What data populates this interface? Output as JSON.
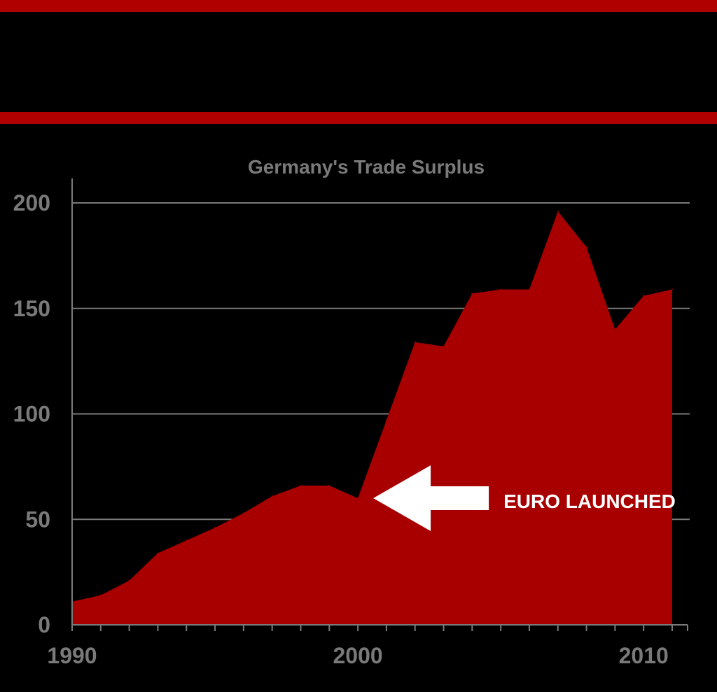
{
  "colors": {
    "background": "#000000",
    "band": "#b00000",
    "area": "#a80000",
    "grid": "#7a7a7a",
    "text": "#7a7a7a",
    "annotation": "#ffffff"
  },
  "chart_data": {
    "type": "area",
    "title": "Germany's Trade Surplus",
    "xlabel": "",
    "ylabel": "",
    "xlim": [
      1990,
      2011
    ],
    "ylim": [
      0,
      200
    ],
    "grid": true,
    "x_ticks": [
      1990,
      2000,
      2010
    ],
    "x_tick_labels": [
      "1990",
      "2000",
      "2010"
    ],
    "y_ticks": [
      0,
      50,
      100,
      150,
      200
    ],
    "y_tick_labels": [
      "0",
      "50",
      "100",
      "150",
      "200"
    ],
    "x": [
      1990,
      1991,
      1992,
      1993,
      1994,
      1995,
      1996,
      1997,
      1998,
      1999,
      2000,
      2001,
      2002,
      2003,
      2004,
      2005,
      2006,
      2007,
      2008,
      2009,
      2010,
      2011
    ],
    "series": [
      {
        "values": [
          11,
          14,
          21,
          34,
          40,
          46,
          53,
          61,
          66,
          66,
          60,
          97,
          134,
          132,
          157,
          159,
          159,
          196,
          179,
          140,
          156,
          159
        ],
        "color": "#a80000"
      }
    ],
    "annotation": {
      "text": "EURO LAUNCHED",
      "points_to_x": 2000,
      "arrow": "left"
    }
  }
}
